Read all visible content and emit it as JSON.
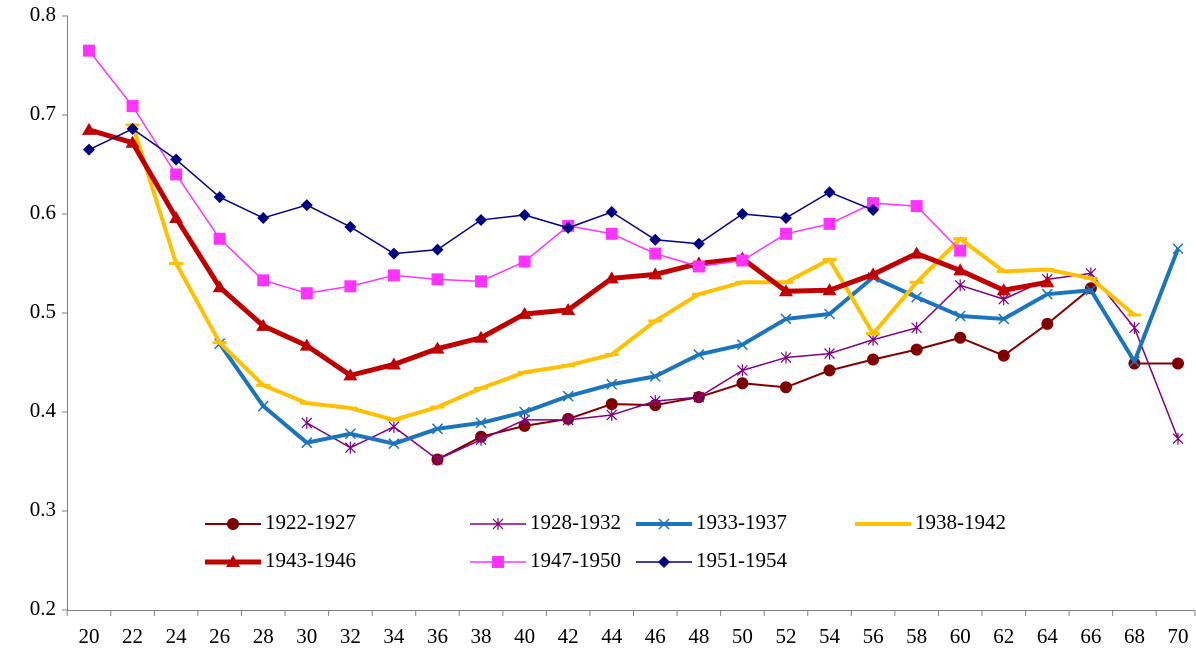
{
  "chart_data": {
    "type": "line",
    "categories": [
      20,
      22,
      24,
      26,
      28,
      30,
      32,
      34,
      36,
      38,
      40,
      42,
      44,
      46,
      48,
      50,
      52,
      54,
      56,
      58,
      60,
      62,
      64,
      66,
      68,
      70
    ],
    "ylim": [
      0.2,
      0.8
    ],
    "yticks": [
      0.2,
      0.3,
      0.4,
      0.5,
      0.6,
      0.7,
      0.8
    ],
    "grid": false,
    "series": [
      {
        "name": "1922-1927",
        "color": "#800000",
        "marker": "circle",
        "line_width": 2,
        "values": [
          null,
          null,
          null,
          null,
          null,
          null,
          null,
          null,
          0.352,
          0.375,
          0.386,
          0.393,
          0.408,
          0.407,
          0.415,
          0.429,
          0.425,
          0.442,
          0.453,
          0.463,
          0.475,
          0.457,
          0.489,
          0.525,
          0.449,
          0.449
        ]
      },
      {
        "name": "1928-1932",
        "color": "#800080",
        "marker": "star",
        "line_width": 1.5,
        "values": [
          null,
          null,
          null,
          null,
          null,
          0.389,
          0.364,
          0.385,
          0.352,
          0.372,
          0.392,
          0.392,
          0.397,
          0.411,
          0.415,
          0.442,
          0.455,
          0.459,
          0.473,
          0.485,
          0.528,
          0.514,
          0.534,
          0.54,
          0.485,
          0.373
        ]
      },
      {
        "name": "1933-1937",
        "color": "#1B75BC",
        "marker": "x",
        "line_width": 4,
        "values": [
          null,
          null,
          null,
          0.469,
          0.406,
          0.369,
          0.378,
          0.368,
          0.383,
          0.389,
          0.4,
          0.416,
          0.428,
          0.436,
          0.458,
          0.468,
          0.494,
          0.499,
          0.536,
          0.516,
          0.497,
          0.494,
          0.519,
          0.523,
          0.451,
          0.565
        ]
      },
      {
        "name": "1938-1942",
        "color": "#FFC000",
        "marker": "dash",
        "line_width": 4,
        "values": [
          null,
          0.69,
          0.55,
          0.47,
          0.427,
          0.409,
          0.404,
          0.392,
          0.405,
          0.424,
          0.44,
          0.447,
          0.458,
          0.492,
          0.519,
          0.531,
          0.531,
          0.554,
          0.479,
          0.531,
          0.575,
          0.542,
          0.544,
          0.535,
          0.498,
          null
        ]
      },
      {
        "name": "1943-1946",
        "color": "#C00000",
        "marker": "triangle",
        "line_width": 5,
        "values": [
          0.685,
          0.672,
          0.596,
          0.526,
          0.487,
          0.467,
          0.437,
          0.448,
          0.464,
          0.475,
          0.499,
          0.503,
          0.535,
          0.539,
          0.55,
          0.555,
          0.522,
          0.523,
          0.539,
          0.56,
          0.543,
          0.523,
          0.531,
          null,
          null,
          null
        ]
      },
      {
        "name": "1947-1950",
        "color": "#FF33FF",
        "marker": "square",
        "line_width": 1.5,
        "values": [
          0.765,
          0.709,
          0.64,
          0.575,
          0.533,
          0.52,
          0.527,
          0.538,
          0.534,
          0.532,
          0.552,
          0.588,
          0.58,
          0.56,
          0.547,
          0.553,
          0.58,
          0.59,
          0.611,
          0.608,
          0.563,
          null,
          null,
          null,
          null,
          null
        ]
      },
      {
        "name": "1951-1954",
        "color": "#000080",
        "marker": "diamond",
        "line_width": 1.5,
        "values": [
          0.665,
          0.686,
          0.655,
          0.617,
          0.596,
          0.609,
          0.587,
          0.56,
          0.564,
          0.594,
          0.599,
          0.586,
          0.602,
          0.574,
          0.57,
          0.6,
          0.596,
          0.622,
          0.604,
          null,
          null,
          null,
          null,
          null,
          null,
          null
        ]
      }
    ]
  }
}
